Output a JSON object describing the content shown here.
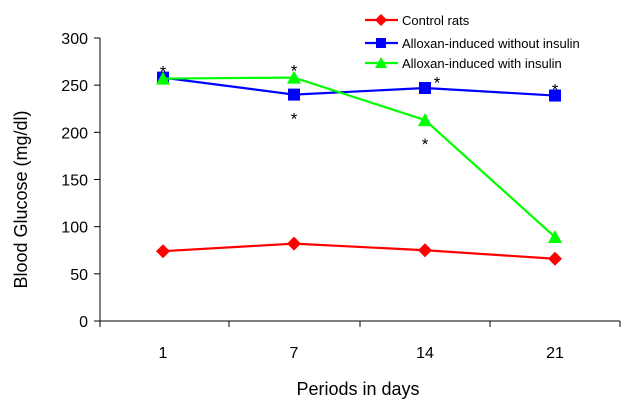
{
  "chart_data": {
    "type": "line",
    "title": "",
    "xlabel": "Periods in days",
    "ylabel": "Blood Glucose (mg/dl)",
    "categories": [
      "1",
      "7",
      "14",
      "21"
    ],
    "ylim": [
      0,
      300
    ],
    "yticks": [
      "0",
      "50",
      "100",
      "150",
      "200",
      "250",
      "300"
    ],
    "grid": false,
    "legend_position": "top-right",
    "series": [
      {
        "name": "Control rats",
        "values": [
          74,
          82,
          75,
          66
        ],
        "color": "#ff0000",
        "marker": "diamond"
      },
      {
        "name": "Alloxan-induced without insulin",
        "values": [
          258,
          240,
          247,
          239
        ],
        "color": "#0000ff",
        "marker": "square"
      },
      {
        "name": "Alloxan-induced with insulin",
        "values": [
          257,
          258,
          213,
          89
        ],
        "color": "#00ff00",
        "marker": "triangle"
      }
    ],
    "annotations": [
      {
        "text": "*",
        "category": "1",
        "value": 271
      },
      {
        "text": "*",
        "category": "7",
        "value": 272
      },
      {
        "text": "*",
        "category": "7",
        "value": 221
      },
      {
        "text": "*",
        "category": "14",
        "value": 194
      },
      {
        "text": "*",
        "category": "14",
        "value": 259
      },
      {
        "text": "*",
        "category": "21",
        "value": 252
      }
    ]
  }
}
